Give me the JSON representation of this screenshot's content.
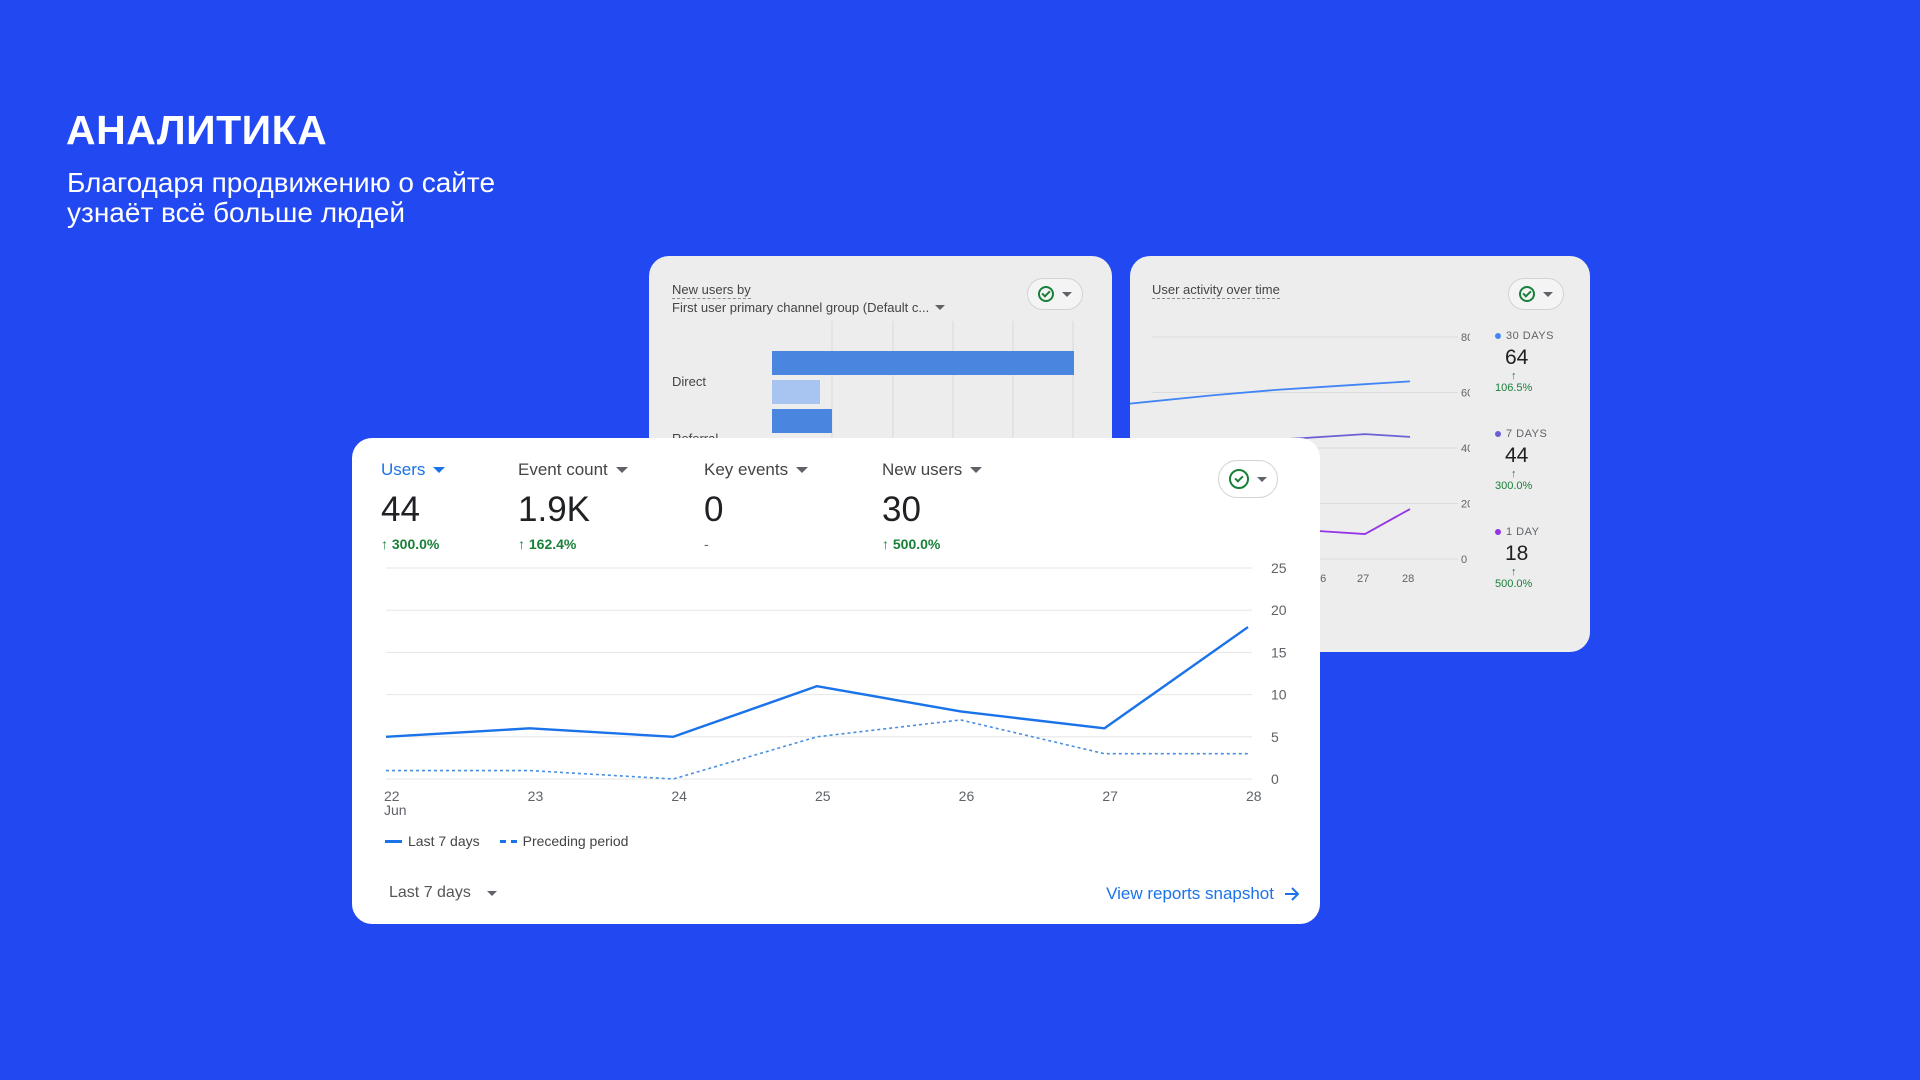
{
  "heading": "АНАЛИТИКА",
  "subheading_lines": [
    "Благодаря продвижению о сайте",
    "узнаёт всё больше людей"
  ],
  "channel_card": {
    "title_line1": "New users by",
    "title_line2": "First user primary channel group (Default c...",
    "rows": [
      {
        "label": "Direct"
      },
      {
        "label": "Referral"
      }
    ]
  },
  "activity_card": {
    "title": "User activity over time",
    "y_ticks": [
      "80",
      "60",
      "40",
      "20",
      "0"
    ],
    "x_ticks": [
      "26",
      "27",
      "28"
    ],
    "stats": [
      {
        "label": "30 DAYS",
        "value": "64",
        "change": "106.5%",
        "color": "#4285F4"
      },
      {
        "label": "7 DAYS",
        "value": "44",
        "change": "300.0%",
        "color": "#6b5fd6"
      },
      {
        "label": "1 DAY",
        "value": "18",
        "change": "500.0%",
        "color": "#9334e6"
      }
    ],
    "chart_data": {
      "type": "line",
      "ylim": [
        0,
        80
      ],
      "series": [
        {
          "name": "30 DAYS",
          "values": [
            56,
            59,
            61,
            62,
            63,
            64
          ],
          "color": "#4285F4"
        },
        {
          "name": "7 DAYS",
          "values": [
            40,
            42,
            43,
            44,
            45,
            44
          ],
          "color": "#6b5fd6"
        },
        {
          "name": "1 DAY",
          "values": [
            13,
            12,
            11,
            10,
            9,
            18
          ],
          "color": "#9334e6"
        }
      ]
    }
  },
  "main_card": {
    "metrics": [
      {
        "label": "Users",
        "value": "44",
        "change": "300.0%",
        "arrow": "↑",
        "active": true
      },
      {
        "label": "Event count",
        "value": "1.9K",
        "change": "162.4%",
        "arrow": "↑",
        "active": false
      },
      {
        "label": "Key events",
        "value": "0",
        "change": "-",
        "arrow": "",
        "active": false
      },
      {
        "label": "New users",
        "value": "30",
        "change": "500.0%",
        "arrow": "↑",
        "active": false
      }
    ],
    "legend": {
      "current": "Last 7 days",
      "previous": "Preceding period"
    },
    "date_range": "Last 7 days",
    "link": "View reports snapshot",
    "chart_data": {
      "type": "line",
      "categories": [
        "22",
        "23",
        "24",
        "25",
        "26",
        "27",
        "28"
      ],
      "x_sublabel": "Jun",
      "y_ticks": [
        25,
        20,
        15,
        10,
        5,
        0
      ],
      "ylim": [
        0,
        25
      ],
      "series": [
        {
          "name": "Last 7 days",
          "values": [
            5,
            6,
            5,
            11,
            8,
            6,
            18
          ],
          "color": "#1a73e8",
          "style": "solid"
        },
        {
          "name": "Preceding period",
          "values": [
            1,
            1,
            0,
            5,
            7,
            3,
            3
          ],
          "color": "#4a8fdf",
          "style": "dashed"
        }
      ]
    }
  }
}
